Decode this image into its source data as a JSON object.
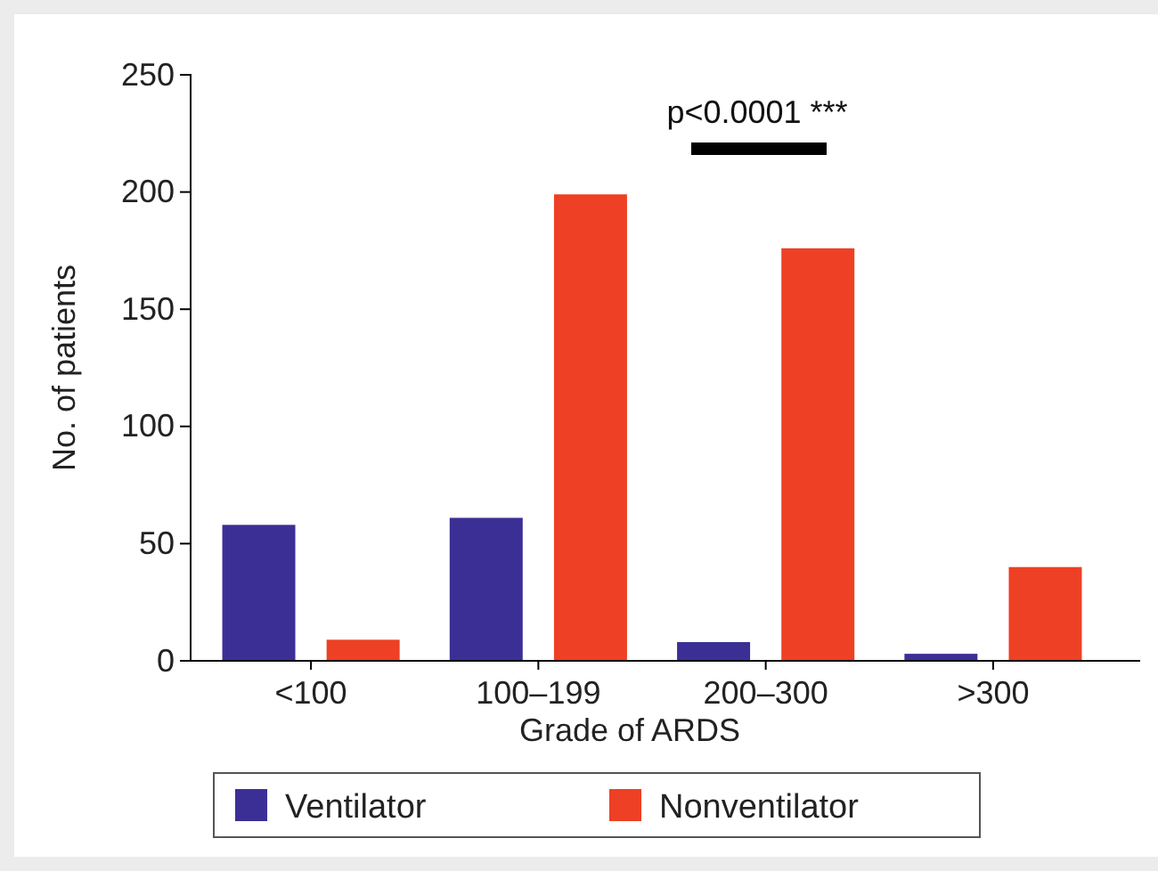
{
  "chart_data": {
    "type": "bar",
    "xlabel": "Grade of ARDS",
    "ylabel": "No. of patients",
    "categories": [
      "<100",
      "100–199",
      "200–300",
      ">300"
    ],
    "series": [
      {
        "name": "Ventilator",
        "color": "#3b2f96",
        "values": [
          58,
          61,
          8,
          3
        ]
      },
      {
        "name": "Nonventilator",
        "color": "#ee4024",
        "values": [
          9,
          199,
          176,
          40
        ]
      }
    ],
    "ylim": [
      0,
      250
    ],
    "yticks": [
      0,
      50,
      100,
      150,
      200,
      250
    ],
    "grid": false,
    "legend": "bottom",
    "annotations": [
      "p<0.0001 ***"
    ]
  }
}
